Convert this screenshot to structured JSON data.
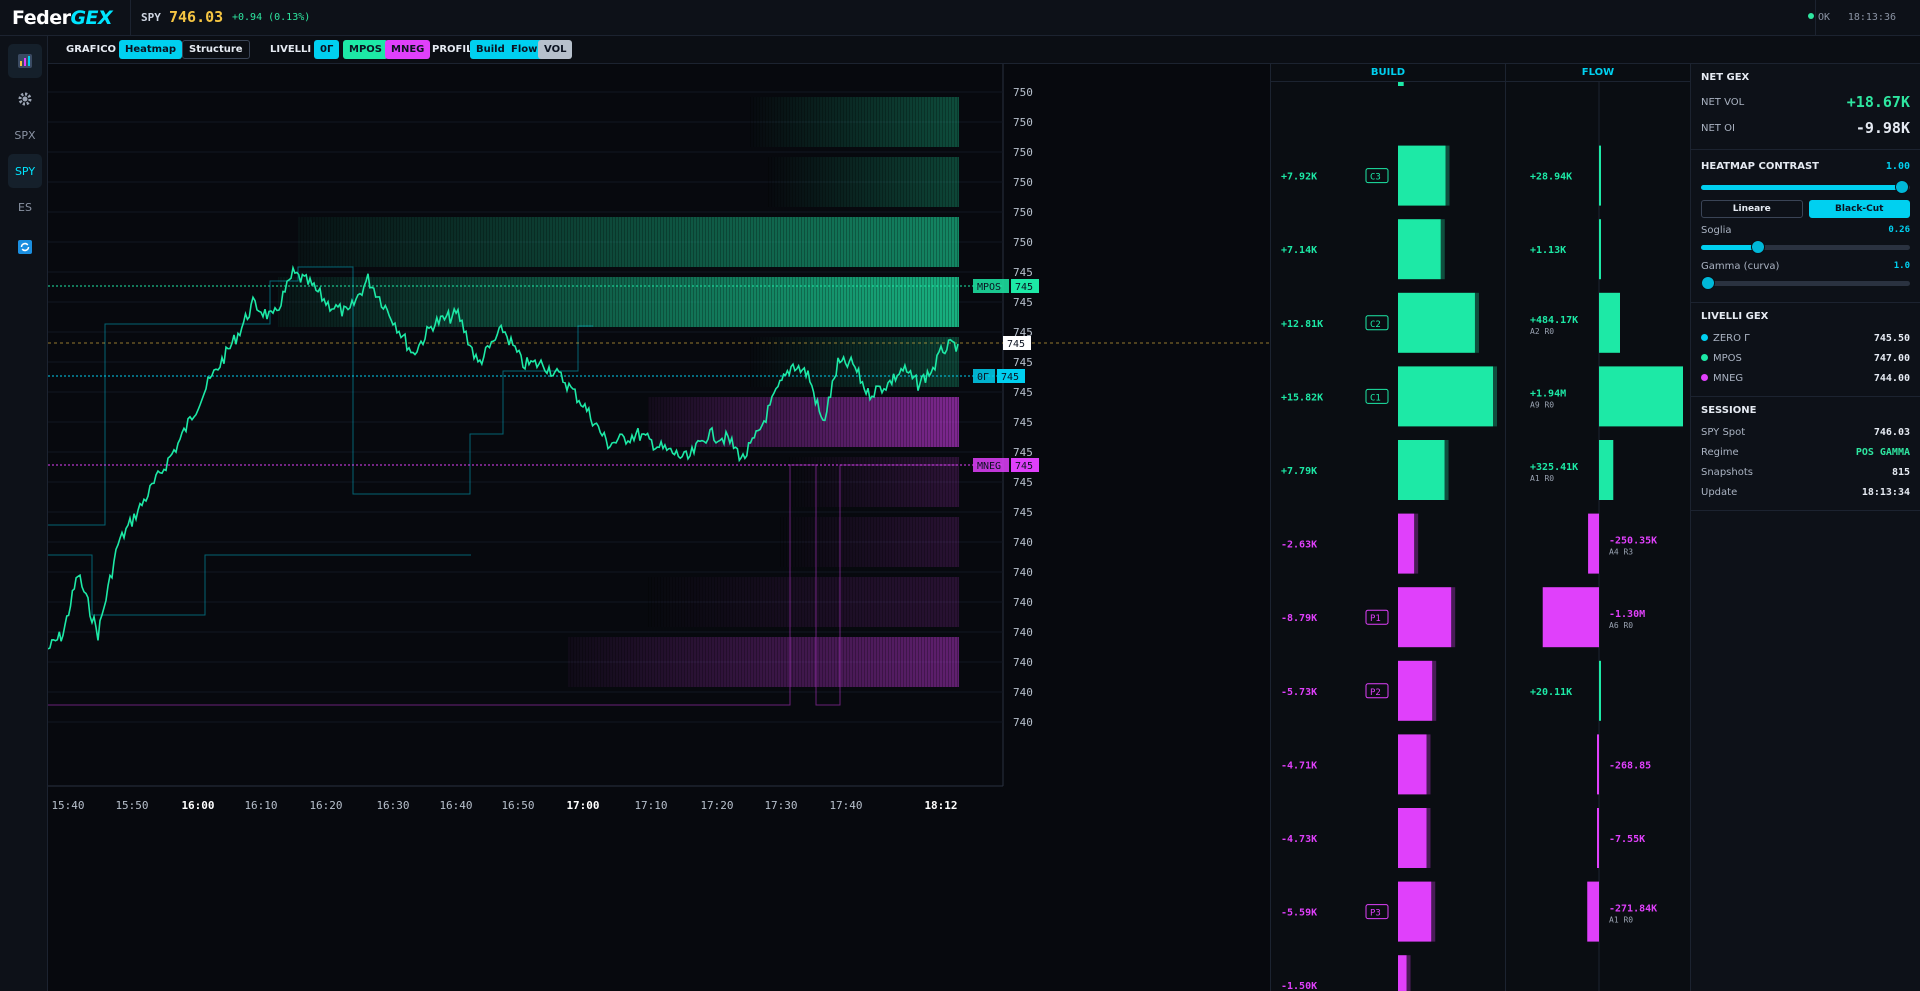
{
  "app": {
    "logo_main": "Feder",
    "logo_accent": "GEX",
    "symbol": "SPY",
    "price": "746.03",
    "change": "+0.94 (0.13%)",
    "status": "OK",
    "clock": "18:13:36"
  },
  "sidebar": {
    "items": [
      {
        "label": "",
        "icon": "chart-icon"
      },
      {
        "label": "",
        "icon": "gear-icon"
      },
      {
        "label": "SPX"
      },
      {
        "label": "SPY"
      },
      {
        "label": "ES"
      },
      {
        "label": "",
        "icon": "refresh-icon"
      }
    ]
  },
  "toolbar": {
    "grafico_label": "GRAFICO",
    "heatmap": "Heatmap",
    "structure": "Structure",
    "livelli_label": "LIVELLI",
    "zero_gamma": "0Γ",
    "mpos": "MPOS",
    "mneg": "MNEG",
    "profili_label": "PROFILI",
    "build": "Build",
    "flow": "Flow",
    "vol": "VOL"
  },
  "chart": {
    "price_axis": [
      "750",
      "750",
      "750",
      "750",
      "750",
      "750",
      "745",
      "745",
      "745",
      "745",
      "745",
      "745",
      "745",
      "745",
      "745",
      "740",
      "740",
      "740",
      "740",
      "740",
      "740",
      "740"
    ],
    "time_axis": [
      {
        "t": "15:40",
        "bold": false
      },
      {
        "t": "15:50",
        "bold": false
      },
      {
        "t": "16:00",
        "bold": true
      },
      {
        "t": "16:10",
        "bold": false
      },
      {
        "t": "16:20",
        "bold": false
      },
      {
        "t": "16:30",
        "bold": false
      },
      {
        "t": "16:40",
        "bold": false
      },
      {
        "t": "16:50",
        "bold": false
      },
      {
        "t": "17:00",
        "bold": true
      },
      {
        "t": "17:10",
        "bold": false
      },
      {
        "t": "17:20",
        "bold": false
      },
      {
        "t": "17:30",
        "bold": false
      },
      {
        "t": "17:40",
        "bold": false
      },
      {
        "t": "18:12",
        "bold": true
      }
    ],
    "level_tags": {
      "mpos": {
        "name": "MPOS",
        "value": "745"
      },
      "current": {
        "value": "745"
      },
      "zero": {
        "name": "0Γ",
        "value": "745"
      },
      "mneg": {
        "name": "MNEG",
        "value": "745"
      }
    },
    "colors": {
      "pos": "#1de9a6",
      "neg": "#e040fb",
      "zero": "#00d0f0",
      "price": "#f5c542"
    }
  },
  "build": {
    "header": "BUILD",
    "rows": [
      {
        "value": "",
        "tag": "",
        "ratio": 0.06
      },
      {
        "value": "+7.92K",
        "tag": "C3",
        "ratio": 0.5
      },
      {
        "value": "+7.14K",
        "tag": "",
        "ratio": 0.45
      },
      {
        "value": "+12.81K",
        "tag": "C2",
        "ratio": 0.81
      },
      {
        "value": "+15.82K",
        "tag": "C1",
        "ratio": 1.0
      },
      {
        "value": "+7.79K",
        "tag": "",
        "ratio": 0.49
      },
      {
        "value": "-2.63K",
        "tag": "",
        "ratio": 0.17
      },
      {
        "value": "-8.79K",
        "tag": "P1",
        "ratio": 0.56
      },
      {
        "value": "-5.73K",
        "tag": "P2",
        "ratio": 0.36
      },
      {
        "value": "-4.71K",
        "tag": "",
        "ratio": 0.3
      },
      {
        "value": "-4.73K",
        "tag": "",
        "ratio": 0.3
      },
      {
        "value": "-5.59K",
        "tag": "P3",
        "ratio": 0.35
      },
      {
        "value": "-1.50K",
        "tag": "",
        "ratio": 0.09
      }
    ]
  },
  "flow": {
    "header": "FLOW",
    "rows": [
      {
        "value": "",
        "sub": "",
        "ratio": 0
      },
      {
        "value": "+28.94K",
        "sub": "",
        "ratio": 0.01
      },
      {
        "value": "+1.13K",
        "sub": "",
        "ratio": 0.005
      },
      {
        "value": "+484.17K",
        "sub": "A2  R0",
        "ratio": 0.25
      },
      {
        "value": "+1.94M",
        "sub": "A9  R0",
        "ratio": 1.0
      },
      {
        "value": "+325.41K",
        "sub": "A1  R0",
        "ratio": 0.17
      },
      {
        "value": "-250.35K",
        "sub": "A4  R3",
        "ratio": 0.13
      },
      {
        "value": "-1.30M",
        "sub": "A6  R0",
        "ratio": 0.67
      },
      {
        "value": "+20.11K",
        "sub": "",
        "ratio": 0.01
      },
      {
        "value": "-268.85",
        "sub": "",
        "ratio": 0.005
      },
      {
        "value": "-7.55K",
        "sub": "",
        "ratio": 0.005
      },
      {
        "value": "-271.84K",
        "sub": "A1  R0",
        "ratio": 0.14
      },
      {
        "value": "",
        "sub": "",
        "ratio": 0
      }
    ]
  },
  "panel": {
    "net_gex": {
      "title": "NET GEX",
      "vol_label": "NET VOL",
      "vol_value": "+18.67K",
      "oi_label": "NET OI",
      "oi_value": "-9.98K"
    },
    "contrast": {
      "title": "HEATMAP CONTRAST",
      "value": "1.00",
      "level": 1.0,
      "mode_linear": "Lineare",
      "mode_blackcut": "Black-Cut",
      "threshold_label": "Soglia",
      "threshold_value": "0.26",
      "threshold_level": 0.26,
      "gamma_label": "Gamma (curva)",
      "gamma_value": "1.0",
      "gamma_level": 0.0
    },
    "levels": {
      "title": "LIVELLI GEX",
      "items": [
        {
          "label": "ZERO Γ",
          "value": "745.50",
          "color": "#00d0f0"
        },
        {
          "label": "MPOS",
          "value": "747.00",
          "color": "#1de9a6"
        },
        {
          "label": "MNEG",
          "value": "744.00",
          "color": "#e040fb"
        }
      ]
    },
    "session": {
      "title": "SESSIONE",
      "spot_label": "SPY Spot",
      "spot_value": "746.03",
      "regime_label": "Regime",
      "regime_value": "POS GAMMA",
      "snap_label": "Snapshots",
      "snap_value": "815",
      "update_label": "Update",
      "update_value": "18:13:34"
    }
  }
}
